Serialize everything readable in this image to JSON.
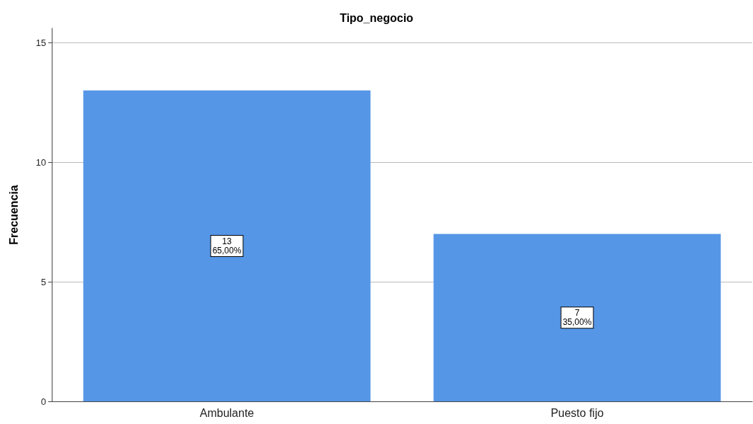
{
  "chart_data": {
    "type": "bar",
    "title": "Tipo_negocio",
    "ylabel": "Frecuencia",
    "categories": [
      "Ambulante",
      "Puesto fijo"
    ],
    "values": [
      13,
      7
    ],
    "color": "#5596e6",
    "value_labels": [
      "13\n65,00%",
      "7\n35,00%"
    ],
    "ylim": [
      0,
      15.6
    ],
    "yticks": [
      0,
      5,
      10,
      15
    ],
    "grid": "y"
  }
}
